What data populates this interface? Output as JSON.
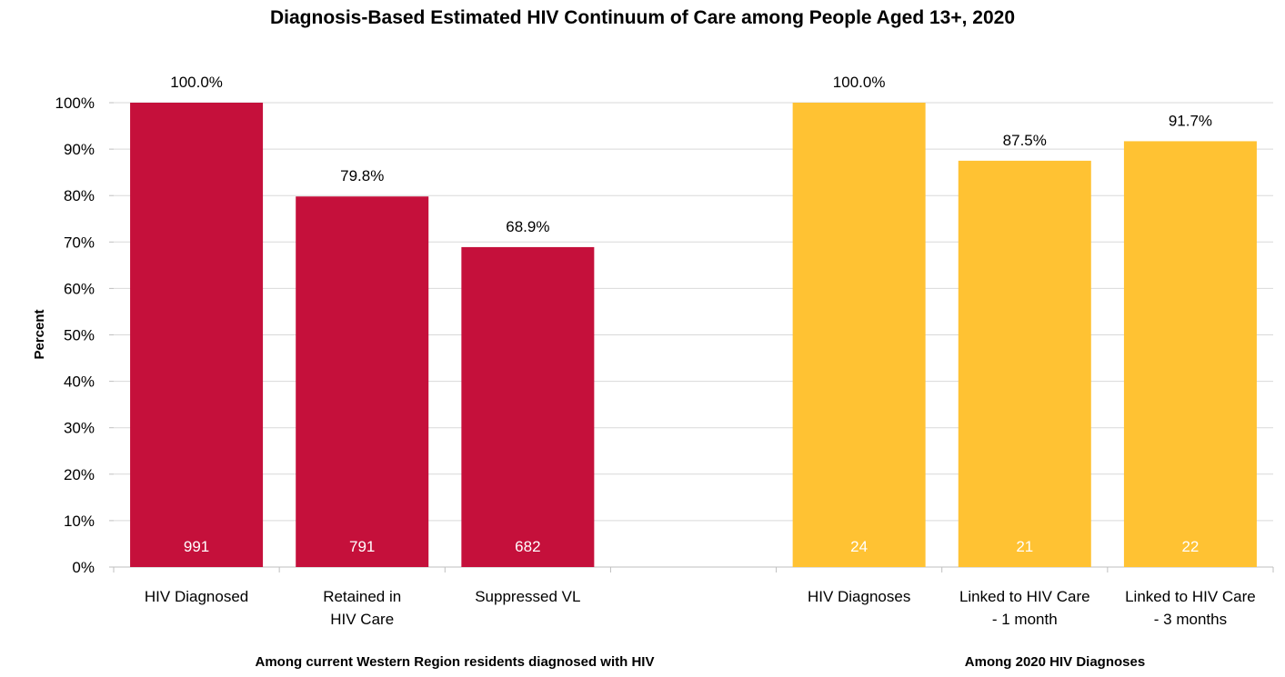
{
  "chart_data": {
    "type": "bar",
    "title": "Diagnosis-Based Estimated HIV Continuum of Care among People Aged 13+, 2020",
    "ylabel": "Percent",
    "ylim": [
      0,
      100
    ],
    "yticks": [
      "0%",
      "10%",
      "20%",
      "30%",
      "40%",
      "50%",
      "60%",
      "70%",
      "80%",
      "90%",
      "100%"
    ],
    "grid": true,
    "groups": [
      {
        "label": "Among current Western Region residents diagnosed with HIV",
        "color": "#C5103B",
        "bars": [
          {
            "category": [
              "HIV Diagnosed"
            ],
            "value": 100.0,
            "value_label": "100.0%",
            "count": "991"
          },
          {
            "category": [
              "Retained in",
              "HIV Care"
            ],
            "value": 79.8,
            "value_label": "79.8%",
            "count": "791"
          },
          {
            "category": [
              "Suppressed VL"
            ],
            "value": 68.9,
            "value_label": "68.9%",
            "count": "682"
          }
        ]
      },
      {
        "label": "Among 2020 HIV Diagnoses",
        "color": "#FFC233",
        "bars": [
          {
            "category": [
              "HIV Diagnoses"
            ],
            "value": 100.0,
            "value_label": "100.0%",
            "count": "24"
          },
          {
            "category": [
              "Linked to HIV Care",
              "- 1 month"
            ],
            "value": 87.5,
            "value_label": "87.5%",
            "count": "21"
          },
          {
            "category": [
              "Linked to HIV Care",
              "- 3 months"
            ],
            "value": 91.7,
            "value_label": "91.7%",
            "count": "22"
          }
        ]
      }
    ]
  }
}
